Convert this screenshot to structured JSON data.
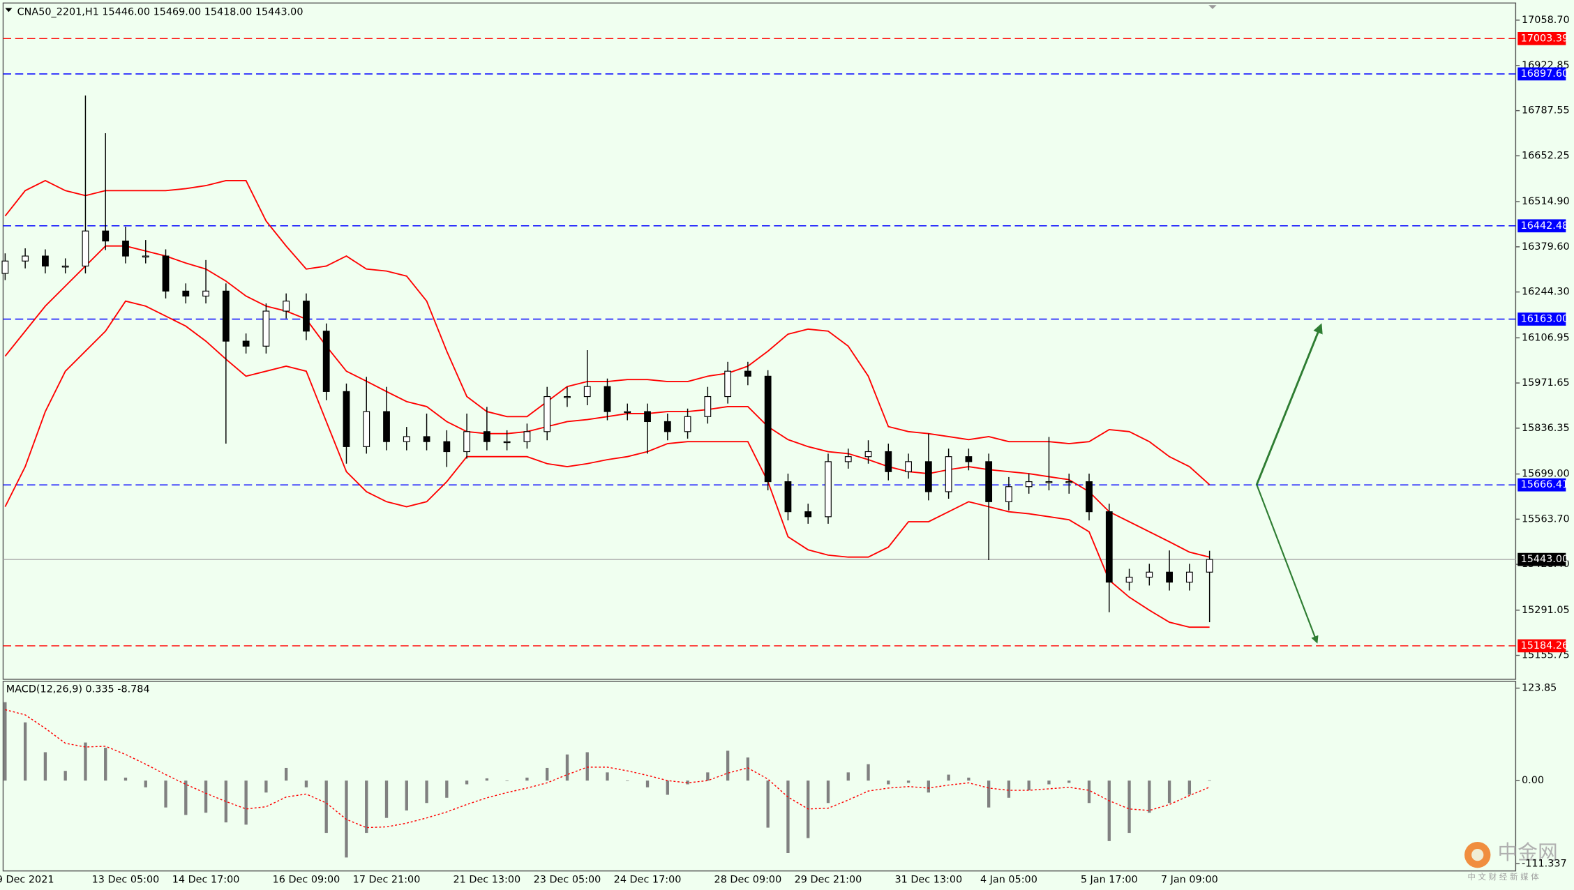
{
  "chart_data": [
    {
      "type": "candlestick",
      "title": "CNA50_2201,H1  15446.00 15469.00 15418.00 15443.00",
      "categories": [
        null,
        "9 Dec 2021",
        null,
        null,
        null,
        null,
        "13 Dec 05:00",
        null,
        null,
        null,
        "14 Dec 17:00",
        null,
        null,
        null,
        null,
        "16 Dec 09:00",
        null,
        null,
        null,
        "17 Dec 21:00",
        null,
        null,
        null,
        null,
        "21 Dec 13:00",
        null,
        null,
        null,
        "23 Dec 05:00",
        null,
        null,
        null,
        "24 Dec 17:00",
        null,
        null,
        null,
        null,
        "28 Dec 09:00",
        null,
        null,
        null,
        "29 Dec 21:00",
        null,
        null,
        null,
        null,
        "31 Dec 13:00",
        null,
        null,
        null,
        "4 Jan 05:00",
        null,
        null,
        null,
        null,
        "5 Jan 17:00",
        null,
        null,
        null,
        "7 Jan 09:00",
        null
      ],
      "open": [
        16300,
        16337,
        16352,
        16322,
        16322,
        16427,
        16397,
        16352,
        16352,
        16247,
        16232,
        16247,
        16097,
        16082,
        16187,
        16217,
        16127,
        15946,
        15781,
        15886,
        15796,
        15811,
        15796,
        15766,
        15826,
        15796,
        15796,
        15826,
        15931,
        15931,
        15961,
        15886,
        15886,
        15856,
        15826,
        15871,
        15931,
        16007,
        15992,
        15676,
        15586,
        15571,
        15736,
        15751,
        15766,
        15706,
        15736,
        15646,
        15751,
        15736,
        15616,
        15661,
        15676,
        15676,
        15676,
        15586,
        15375,
        15390,
        15405,
        15375,
        15405
      ],
      "high": [
        16360,
        16375,
        16372,
        16345,
        16833,
        16720,
        16440,
        16400,
        16372,
        16270,
        16340,
        16270,
        16120,
        16210,
        16240,
        16240,
        16150,
        15970,
        15990,
        15960,
        15840,
        15880,
        15830,
        15880,
        15900,
        15830,
        15850,
        15960,
        15960,
        16070,
        15985,
        15910,
        15910,
        15880,
        15895,
        15960,
        16035,
        16035,
        16010,
        15700,
        15610,
        15760,
        15775,
        15800,
        15790,
        15760,
        15820,
        15775,
        15775,
        15760,
        15690,
        15700,
        15810,
        15700,
        15700,
        15610,
        15415,
        15430,
        15470,
        15430,
        15469
      ],
      "low": [
        16280,
        16315,
        16300,
        16300,
        16300,
        16370,
        16330,
        16330,
        16225,
        16210,
        16210,
        15790,
        16060,
        16060,
        16165,
        16100,
        15920,
        15730,
        15760,
        15770,
        15770,
        15770,
        15720,
        15745,
        15770,
        15770,
        15775,
        15800,
        15900,
        15905,
        15860,
        15860,
        15760,
        15800,
        15805,
        15850,
        15910,
        15965,
        15650,
        15560,
        15550,
        15550,
        15715,
        15730,
        15680,
        15685,
        15620,
        15625,
        15710,
        15441,
        15590,
        15640,
        15650,
        15640,
        15560,
        15285,
        15350,
        15365,
        15350,
        15350,
        15255
      ],
      "close": [
        16337,
        16352,
        16322,
        16322,
        16427,
        16397,
        16352,
        16352,
        16247,
        16232,
        16247,
        16097,
        16082,
        16187,
        16217,
        16127,
        15946,
        15781,
        15886,
        15796,
        15811,
        15796,
        15766,
        15826,
        15796,
        15796,
        15826,
        15931,
        15931,
        15961,
        15886,
        15886,
        15856,
        15826,
        15871,
        15931,
        16007,
        15992,
        15676,
        15586,
        15571,
        15736,
        15751,
        15766,
        15706,
        15736,
        15646,
        15751,
        15736,
        15616,
        15661,
        15676,
        15676,
        15676,
        15586,
        15375,
        15390,
        15405,
        15375,
        15405,
        15443
      ],
      "color": "#000000",
      "overlays": [
        {
          "color": "#ff0000",
          "values": [
            16472,
            16548,
            16578,
            16548,
            16533,
            16548,
            16548,
            16548,
            16548,
            16554,
            16563,
            16578,
            16578,
            16457,
            16382,
            16313,
            16322,
            16352,
            16313,
            16307,
            16292,
            16217,
            16067,
            15931,
            15886,
            15871,
            15871,
            15916,
            15961,
            15976,
            15976,
            15982,
            15982,
            15976,
            15976,
            15992,
            16001,
            16022,
            16067,
            16118,
            16133,
            16127,
            16082,
            15992,
            15841,
            15826,
            15820,
            15811,
            15802,
            15811,
            15796,
            15796,
            15796,
            15790,
            15796,
            15832,
            15826,
            15796,
            15751,
            15721,
            15667
          ]
        },
        {
          "color": "#ff0000",
          "values": [
            16052,
            16127,
            16202,
            16262,
            16322,
            16382,
            16382,
            16367,
            16352,
            16331,
            16313,
            16277,
            16232,
            16202,
            16187,
            16163,
            16082,
            16007,
            15977,
            15946,
            15916,
            15901,
            15856,
            15826,
            15820,
            15820,
            15826,
            15841,
            15856,
            15862,
            15871,
            15880,
            15880,
            15886,
            15886,
            15892,
            15901,
            15901,
            15841,
            15802,
            15781,
            15766,
            15760,
            15742,
            15721,
            15706,
            15700,
            15712,
            15721,
            15712,
            15706,
            15700,
            15691,
            15682,
            15646,
            15586,
            15556,
            15526,
            15496,
            15465,
            15450
          ]
        },
        {
          "color": "#ff0000",
          "values": [
            15601,
            15721,
            15886,
            16007,
            16067,
            16127,
            16217,
            16202,
            16172,
            16142,
            16097,
            16043,
            15992,
            16007,
            16022,
            16007,
            15856,
            15706,
            15646,
            15616,
            15601,
            15616,
            15676,
            15751,
            15751,
            15751,
            15751,
            15730,
            15721,
            15730,
            15742,
            15751,
            15766,
            15790,
            15796,
            15796,
            15796,
            15796,
            15676,
            15511,
            15472,
            15456,
            15450,
            15450,
            15480,
            15556,
            15556,
            15586,
            15616,
            15601,
            15586,
            15580,
            15571,
            15562,
            15526,
            15381,
            15330,
            15291,
            15255,
            15240,
            15240
          ]
        }
      ],
      "ylim": [
        15084,
        17104
      ],
      "yticks": [
        {
          "value": 17058.7,
          "label": "17058.70"
        },
        {
          "value": 16922.85,
          "label": "16922.85"
        },
        {
          "value": 16787.55,
          "label": "16787.55"
        },
        {
          "value": 16652.25,
          "label": "16652.25"
        },
        {
          "value": 16514.9,
          "label": "16514.90"
        },
        {
          "value": 16379.6,
          "label": "16379.60"
        },
        {
          "value": 16244.3,
          "label": "16244.30"
        },
        {
          "value": 16106.95,
          "label": "16106.95"
        },
        {
          "value": 15971.65,
          "label": "15971.65"
        },
        {
          "value": 15836.35,
          "label": "15836.35"
        },
        {
          "value": 15699,
          "label": "15699.00"
        },
        {
          "value": 15563.7,
          "label": "15563.70"
        },
        {
          "value": 15428.4,
          "label": "15428.40"
        },
        {
          "value": 15291.05,
          "label": "15291.05"
        },
        {
          "value": 15155.75,
          "label": "15155.75"
        }
      ],
      "levels": [
        {
          "value": 17003.39,
          "label": "17003.39",
          "color": "#ff0000",
          "style": "dashed"
        },
        {
          "value": 16897.6,
          "label": "16897.60",
          "color": "#0000ff",
          "style": "dashed"
        },
        {
          "value": 16442.48,
          "label": "16442.48",
          "color": "#0000ff",
          "style": "dashed"
        },
        {
          "value": 16163,
          "label": "16163.00",
          "color": "#0000ff",
          "style": "dashed"
        },
        {
          "value": 15666.41,
          "label": "15666.41",
          "color": "#0000ff",
          "style": "dashed"
        },
        {
          "value": 15443,
          "label": "15443.00",
          "color": "#000000",
          "style": "solid"
        },
        {
          "value": 15184.26,
          "label": "15184.26",
          "color": "#ff0000",
          "style": "dashed"
        }
      ]
    },
    {
      "type": "macd",
      "title": "MACD(12,26,9) 0.335 -8.784",
      "color": "#808080",
      "values": [
        105,
        78,
        38,
        13,
        51,
        44,
        4,
        -9,
        -36,
        -46,
        -43,
        -56,
        -59,
        -16,
        17,
        -9,
        -70,
        -103,
        -70,
        -50,
        -40,
        -30,
        -23,
        -5,
        3,
        0,
        4,
        17,
        35,
        38,
        11,
        0,
        -9,
        -19,
        -5,
        11,
        40,
        31,
        -63,
        -97,
        -77,
        -30,
        11,
        22,
        -5,
        -3,
        -16,
        8,
        4,
        -36,
        -23,
        -13,
        -5,
        -3,
        -30,
        -81,
        -70,
        -43,
        -30,
        -19,
        0.335
      ],
      "signal": {
        "color": "#ff0000",
        "values": [
          95,
          88,
          70,
          50,
          45,
          46,
          35,
          22,
          8,
          -5,
          -17,
          -28,
          -38,
          -35,
          -22,
          -18,
          -30,
          -52,
          -63,
          -62,
          -57,
          -50,
          -42,
          -32,
          -23,
          -16,
          -10,
          -3,
          8,
          18,
          18,
          13,
          7,
          0,
          -3,
          0,
          10,
          17,
          2,
          -22,
          -38,
          -37,
          -26,
          -14,
          -10,
          -8,
          -10,
          -6,
          -3,
          -10,
          -13,
          -13,
          -11,
          -9,
          -13,
          -27,
          -38,
          -40,
          -32,
          -20,
          -8.784
        ]
      },
      "ylim": [
        -121,
        133
      ],
      "yticks": [
        123.85,
        {
          "value": 0,
          "label": "0.00"
        },
        -111.337
      ]
    }
  ],
  "watermark": {
    "name": "中金网",
    "tagline": "中 文 财 经 新 媒 体"
  }
}
